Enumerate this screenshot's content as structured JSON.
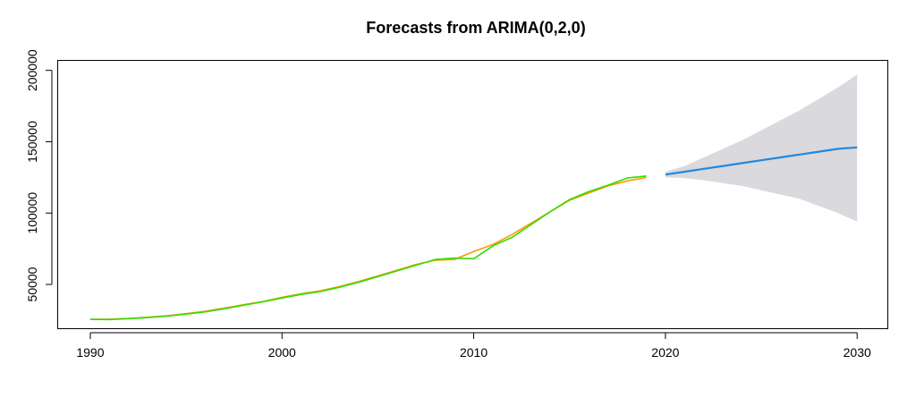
{
  "chart_data": {
    "type": "line",
    "title": "Forecasts from ARIMA(0,2,0)",
    "xlabel": "",
    "ylabel": "",
    "xlim": [
      1988.3,
      2031.6
    ],
    "ylim": [
      19000,
      207000
    ],
    "x_ticks": [
      1990,
      2000,
      2010,
      2020,
      2030
    ],
    "y_ticks": [
      50000,
      100000,
      150000,
      200000
    ],
    "grid": false,
    "legend": "none",
    "series": [
      {
        "color": "#ff9900",
        "x": [
          1990,
          1991,
          1992,
          1993,
          1994,
          1995,
          1996,
          1997,
          1998,
          1999,
          2000,
          2001,
          2002,
          2003,
          2004,
          2005,
          2006,
          2007,
          2008,
          2009,
          2010,
          2011,
          2012,
          2013,
          2014,
          2015,
          2016,
          2017,
          2018,
          2019
        ],
        "values": [
          25500,
          25700,
          26200,
          27000,
          28000,
          29500,
          31200,
          33500,
          35800,
          38000,
          41000,
          43500,
          45500,
          48500,
          52000,
          56000,
          60000,
          64000,
          67000,
          67500,
          73000,
          78000,
          85000,
          93000,
          101000,
          109000,
          114000,
          119000,
          122500,
          125000
        ]
      },
      {
        "color": "#33dd00",
        "x": [
          1990,
          1991,
          1992,
          1993,
          1994,
          1995,
          1996,
          1997,
          1998,
          1999,
          2000,
          2001,
          2002,
          2003,
          2004,
          2005,
          2006,
          2007,
          2008,
          2009,
          2010,
          2011,
          2012,
          2013,
          2014,
          2015,
          2016,
          2017,
          2018,
          2019
        ],
        "values": [
          25500,
          25400,
          26000,
          26800,
          27800,
          29200,
          30800,
          33000,
          35500,
          37800,
          40500,
          43000,
          45000,
          48000,
          51500,
          55500,
          59500,
          63500,
          67500,
          68500,
          68000,
          77000,
          83000,
          92000,
          101000,
          109500,
          115000,
          119500,
          124500,
          126000
        ]
      },
      {
        "color": "#2288dd",
        "x": [
          2020,
          2021,
          2022,
          2023,
          2024,
          2025,
          2026,
          2027,
          2028,
          2029,
          2030
        ],
        "values": [
          127000,
          129000,
          131000,
          133000,
          135000,
          137000,
          139000,
          141000,
          143000,
          145000,
          146000
        ]
      }
    ],
    "forecast_band": {
      "color": "#d9d9de",
      "x": [
        2020,
        2021,
        2022,
        2023,
        2024,
        2025,
        2026,
        2027,
        2028,
        2029,
        2030
      ],
      "upper": [
        129000,
        133000,
        139000,
        145000,
        151000,
        158000,
        165000,
        172000,
        180000,
        188000,
        197000
      ],
      "lower": [
        125000,
        124500,
        123000,
        121000,
        119000,
        116000,
        113000,
        110000,
        105000,
        100000,
        94000
      ]
    }
  }
}
